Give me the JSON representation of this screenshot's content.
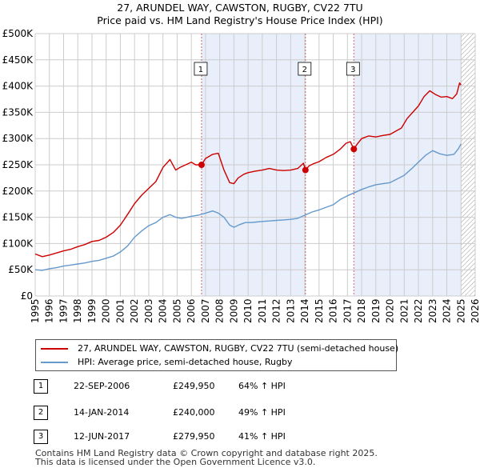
{
  "title_line1": "27, ARUNDEL WAY, CAWSTON, RUGBY, CV22 7TU",
  "title_line2": "Price paid vs. HM Land Registry's House Price Index (HPI)",
  "colors": {
    "property": "#cc0000",
    "hpi": "#6699cc",
    "shade": "#e8eefa",
    "marker_line": "#cc6666",
    "grid": "#cccccc"
  },
  "chart_data": {
    "type": "line",
    "xlim": [
      1995,
      2026
    ],
    "ylim": [
      0,
      500000
    ],
    "y_ticks": [
      {
        "value": 0,
        "label": "£0"
      },
      {
        "value": 50000,
        "label": "£50K"
      },
      {
        "value": 100000,
        "label": "£100K"
      },
      {
        "value": 150000,
        "label": "£150K"
      },
      {
        "value": 200000,
        "label": "£200K"
      },
      {
        "value": 250000,
        "label": "£250K"
      },
      {
        "value": 300000,
        "label": "£300K"
      },
      {
        "value": 350000,
        "label": "£350K"
      },
      {
        "value": 400000,
        "label": "£400K"
      },
      {
        "value": 450000,
        "label": "£450K"
      },
      {
        "value": 500000,
        "label": "£500K"
      }
    ],
    "x_ticks": [
      "1995",
      "1996",
      "1997",
      "1998",
      "1999",
      "2000",
      "2001",
      "2002",
      "2003",
      "2004",
      "2005",
      "2006",
      "2007",
      "2008",
      "2009",
      "2010",
      "2011",
      "2012",
      "2013",
      "2014",
      "2015",
      "2016",
      "2017",
      "2018",
      "2019",
      "2020",
      "2021",
      "2022",
      "2023",
      "2024",
      "2025",
      "2026"
    ],
    "shaded_regions": [
      [
        2006.72,
        2014.04
      ],
      [
        2017.45,
        2025.0
      ]
    ],
    "hatched_region": [
      2025.0,
      2026
    ],
    "series": [
      {
        "name": "27, ARUNDEL WAY, CAWSTON, RUGBY, CV22 7TU (semi-detached house)",
        "color": "#cc0000",
        "x": [
          1995.0,
          1995.5,
          1996.0,
          1996.5,
          1997.0,
          1997.5,
          1998.0,
          1998.5,
          1999.0,
          1999.5,
          2000.0,
          2000.5,
          2001.0,
          2001.5,
          2002.0,
          2002.5,
          2003.0,
          2003.5,
          2004.0,
          2004.5,
          2004.9,
          2005.2,
          2005.6,
          2006.0,
          2006.3,
          2006.72,
          2007.0,
          2007.5,
          2007.9,
          2008.3,
          2008.7,
          2009.0,
          2009.3,
          2009.7,
          2010.0,
          2010.5,
          2011.0,
          2011.5,
          2012.0,
          2012.5,
          2013.0,
          2013.5,
          2013.9,
          2014.04,
          2014.3,
          2014.6,
          2015.0,
          2015.5,
          2016.0,
          2016.5,
          2016.9,
          2017.2,
          2017.45,
          2017.7,
          2018.0,
          2018.5,
          2019.0,
          2019.5,
          2020.0,
          2020.4,
          2020.8,
          2021.2,
          2021.6,
          2022.0,
          2022.4,
          2022.8,
          2023.2,
          2023.6,
          2024.0,
          2024.4,
          2024.7,
          2024.9,
          2025.0
        ],
        "values": [
          80000,
          75000,
          78000,
          82000,
          86000,
          89000,
          94000,
          98000,
          104000,
          106000,
          112000,
          121000,
          135000,
          155000,
          176000,
          192000,
          205000,
          218000,
          245000,
          260000,
          240000,
          245000,
          250000,
          255000,
          250000,
          249950,
          262000,
          270000,
          272000,
          240000,
          216000,
          214000,
          225000,
          232000,
          235000,
          238000,
          240000,
          243000,
          240000,
          239000,
          240000,
          243000,
          253000,
          240000,
          248000,
          252000,
          256000,
          264000,
          270000,
          280000,
          291000,
          294000,
          279950,
          290000,
          300000,
          305000,
          303000,
          306000,
          308000,
          314000,
          320000,
          338000,
          350000,
          362000,
          380000,
          391000,
          384000,
          379000,
          380000,
          376000,
          385000,
          406000,
          402000
        ]
      },
      {
        "name": "HPI: Average price, semi-detached house, Rugby",
        "color": "#6699cc",
        "x": [
          1995.0,
          1995.5,
          1996.0,
          1996.5,
          1997.0,
          1997.5,
          1998.0,
          1998.5,
          1999.0,
          1999.5,
          2000.0,
          2000.5,
          2001.0,
          2001.5,
          2002.0,
          2002.5,
          2003.0,
          2003.5,
          2004.0,
          2004.5,
          2004.9,
          2005.3,
          2005.7,
          2006.0,
          2006.5,
          2007.0,
          2007.5,
          2007.9,
          2008.3,
          2008.7,
          2009.0,
          2009.4,
          2009.8,
          2010.2,
          2010.6,
          2011.0,
          2011.5,
          2012.0,
          2012.5,
          2013.0,
          2013.5,
          2014.0,
          2014.5,
          2015.0,
          2015.5,
          2016.0,
          2016.5,
          2017.0,
          2017.5,
          2018.0,
          2018.5,
          2019.0,
          2019.5,
          2020.0,
          2020.5,
          2021.0,
          2021.5,
          2022.0,
          2022.5,
          2023.0,
          2023.5,
          2024.0,
          2024.5,
          2024.8,
          2025.0
        ],
        "values": [
          50000,
          49000,
          52000,
          54000,
          57000,
          59000,
          61000,
          63000,
          66000,
          68000,
          72000,
          76000,
          84000,
          95000,
          112000,
          124000,
          134000,
          140000,
          150000,
          155000,
          150000,
          148000,
          150000,
          152000,
          154000,
          158000,
          162000,
          158000,
          150000,
          135000,
          131000,
          136000,
          140000,
          140000,
          141000,
          142000,
          143000,
          144000,
          145000,
          146000,
          148000,
          154000,
          160000,
          164000,
          169000,
          174000,
          184000,
          191000,
          197000,
          203000,
          208000,
          212000,
          214000,
          216000,
          223000,
          230000,
          242000,
          255000,
          268000,
          277000,
          271000,
          268000,
          270000,
          280000,
          290000
        ]
      }
    ],
    "sales": [
      {
        "marker": "1",
        "x": 2006.72,
        "price": 249950
      },
      {
        "marker": "2",
        "x": 2014.04,
        "price": 240000
      },
      {
        "marker": "3",
        "x": 2017.45,
        "price": 279950
      }
    ]
  },
  "legend": {
    "property": "27, ARUNDEL WAY, CAWSTON, RUGBY, CV22 7TU (semi-detached house)",
    "hpi": "HPI: Average price, semi-detached house, Rugby"
  },
  "transactions": [
    {
      "marker": "1",
      "date": "22-SEP-2006",
      "price": "£249,950",
      "hpi": "64% ↑ HPI"
    },
    {
      "marker": "2",
      "date": "14-JAN-2014",
      "price": "£240,000",
      "hpi": "49% ↑ HPI"
    },
    {
      "marker": "3",
      "date": "12-JUN-2017",
      "price": "£279,950",
      "hpi": "41% ↑ HPI"
    }
  ],
  "footer": {
    "line1": "Contains HM Land Registry data © Crown copyright and database right 2025.",
    "line2": "This data is licensed under the Open Government Licence v3.0."
  }
}
